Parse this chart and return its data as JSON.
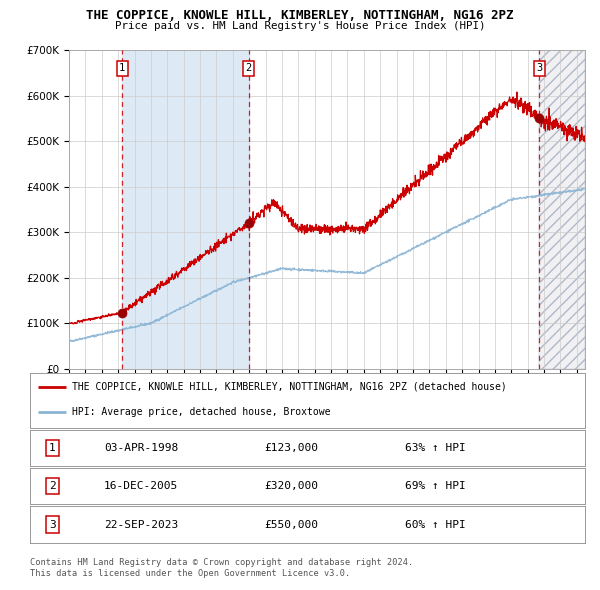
{
  "title": "THE COPPICE, KNOWLE HILL, KIMBERLEY, NOTTINGHAM, NG16 2PZ",
  "subtitle": "Price paid vs. HM Land Registry's House Price Index (HPI)",
  "xmin": 1995.0,
  "xmax": 2026.5,
  "ymin": 0,
  "ymax": 700000,
  "yticks": [
    0,
    100000,
    200000,
    300000,
    400000,
    500000,
    600000,
    700000
  ],
  "ytick_labels": [
    "£0",
    "£100K",
    "£200K",
    "£300K",
    "£400K",
    "£500K",
    "£600K",
    "£700K"
  ],
  "sale_points": [
    {
      "label": "1",
      "date": "03-APR-1998",
      "year": 1998.25,
      "price": 123000,
      "hpi_pct": "63% ↑ HPI"
    },
    {
      "label": "2",
      "date": "16-DEC-2005",
      "year": 2005.96,
      "price": 320000,
      "hpi_pct": "69% ↑ HPI"
    },
    {
      "label": "3",
      "date": "22-SEP-2023",
      "year": 2023.72,
      "price": 550000,
      "hpi_pct": "60% ↑ HPI"
    }
  ],
  "hpi_line_color": "#8ab4d4",
  "price_line_color": "#cc0000",
  "sale_dot_color": "#990000",
  "dashed_line_color": "#cc0000",
  "shaded_region_color": "#ddeaf5",
  "grid_color": "#cccccc",
  "background_color": "#ffffff",
  "legend_line1": "THE COPPICE, KNOWLE HILL, KIMBERLEY, NOTTINGHAM, NG16 2PZ (detached house)",
  "legend_line2": "HPI: Average price, detached house, Broxtowe",
  "footer1": "Contains HM Land Registry data © Crown copyright and database right 2024.",
  "footer2": "This data is licensed under the Open Government Licence v3.0.",
  "table_rows": [
    {
      "num": "1",
      "date": "03-APR-1998",
      "price": "£123,000",
      "hpi": "63% ↑ HPI"
    },
    {
      "num": "2",
      "date": "16-DEC-2005",
      "price": "£320,000",
      "hpi": "69% ↑ HPI"
    },
    {
      "num": "3",
      "date": "22-SEP-2023",
      "price": "£550,000",
      "hpi": "60% ↑ HPI"
    }
  ]
}
